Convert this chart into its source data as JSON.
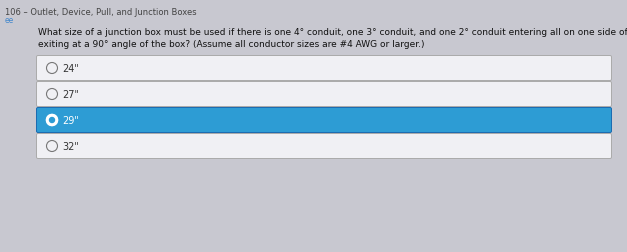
{
  "title_line1": "106 – Outlet, Device, Pull, and Junction Boxes",
  "title_line2": "ee",
  "question_line1": "What size of a junction box must be used if there is one 4° conduit, one 3° conduit, and one 2° conduit entering all on one side of the box and all",
  "question_line2": "exiting at a 90° angle of the box? (Assume all conductor sizes are #4 AWG or larger.)",
  "options": [
    "24\"",
    "27\"",
    "29\"",
    "32\""
  ],
  "correct_index": 2,
  "bg_color": "#c8c8d0",
  "box_bg": "#f0f0f4",
  "selected_bg_top": "#2d9cd4",
  "selected_bg_bot": "#1565a8",
  "selected_text": "#ffffff",
  "normal_text": "#333333",
  "title_text_color": "#444444",
  "question_text_color": "#111111",
  "box_border": "#aaaaaa",
  "selected_border": "#1a6ab0",
  "radio_border_normal": "#777777",
  "radio_fill_normal": "#f0f0f4",
  "radio_dot_selected": "#ffffff"
}
